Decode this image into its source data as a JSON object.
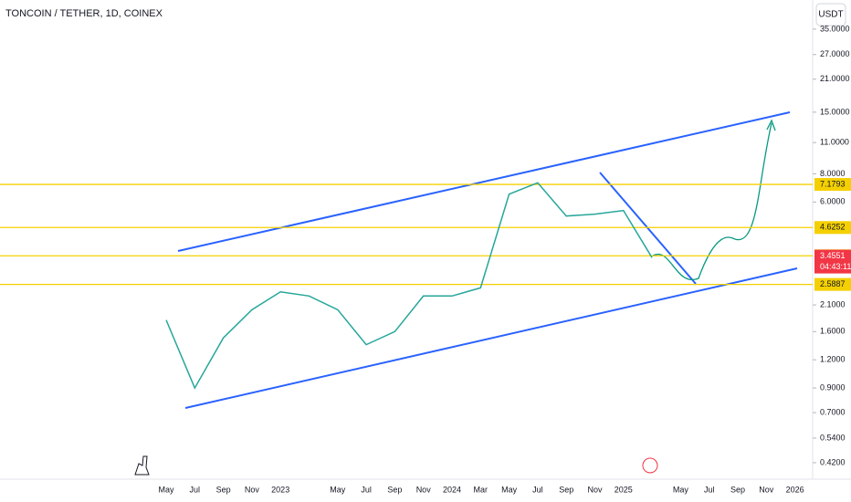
{
  "chart_data": {
    "type": "line",
    "title": "TONCOIN / TETHER, 1D, COINEX",
    "currency": "USDT",
    "log_scale": true,
    "categories": [
      "May",
      "Jul",
      "Sep",
      "Nov",
      "2023",
      null,
      "May",
      "Jul",
      "Sep",
      "Nov",
      "2024",
      "Mar",
      "May",
      "Jul",
      "Sep",
      "Nov",
      "2025",
      null,
      "May",
      "Jul",
      "Sep",
      "Nov",
      "2026"
    ],
    "series": [
      {
        "color": "#26a69a",
        "values": [
          1.8,
          0.9,
          1.5,
          2.0,
          2.4,
          2.3,
          2.0,
          1.4,
          1.6,
          2.3,
          2.3,
          2.5,
          6.5,
          7.3,
          5.2,
          5.3,
          5.5,
          3.4,
          null,
          null,
          null,
          null,
          null
        ]
      }
    ],
    "ylim": [
      0.355,
      47.1
    ],
    "yticks": [
      {
        "value": 0.42,
        "label": "0.4200"
      },
      {
        "value": 0.54,
        "label": "0.5400"
      },
      {
        "value": 0.7,
        "label": "0.7000"
      },
      {
        "value": 0.9,
        "label": "0.9000"
      },
      {
        "value": 1.2,
        "label": "1.2000"
      },
      {
        "value": 1.6,
        "label": "1.6000"
      },
      {
        "value": 2.1,
        "label": "2.1000"
      },
      {
        "value": 6,
        "label": "6.0000"
      },
      {
        "value": 8,
        "label": "8.0000"
      },
      {
        "value": 11,
        "label": "11.0000"
      },
      {
        "value": 15,
        "label": "15.0000"
      },
      {
        "value": 21,
        "label": "21.0000"
      },
      {
        "value": 27,
        "label": "27.0000"
      },
      {
        "value": 35,
        "label": "35.0000"
      }
    ],
    "levels": [
      7.1793,
      4.6252,
      3.4656,
      2.5887
    ],
    "level_color": "#f5d000",
    "last_price": 3.4551,
    "countdown": "04:43:11",
    "last_color": "#f23645"
  }
}
